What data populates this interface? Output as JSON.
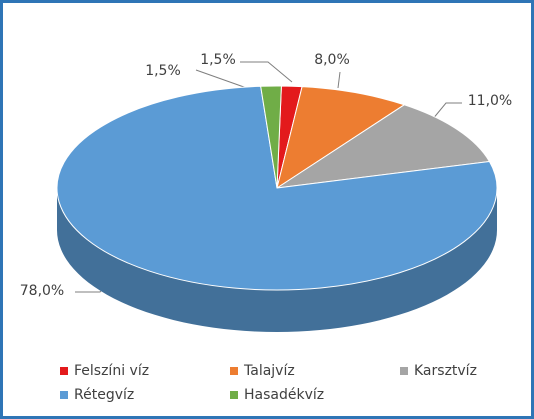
{
  "chart_data": {
    "type": "pie3d",
    "categories": [
      "Felszíni víz",
      "Talajvíz",
      "Karsztvíz",
      "Rétegvíz",
      "Hasadékvíz"
    ],
    "values": [
      1.5,
      8.0,
      11.0,
      78.0,
      1.5
    ],
    "value_labels": [
      "1,5%",
      "8,0%",
      "11,0%",
      "78,0%",
      "1,5%"
    ],
    "colors": [
      "#e31a1c",
      "#ed7d31",
      "#a5a5a5",
      "#5b9bd5",
      "#70ad47"
    ],
    "legend": "bottom"
  }
}
